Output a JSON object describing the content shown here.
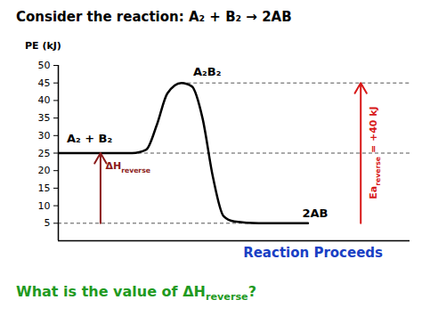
{
  "chart_data": {
    "type": "line",
    "title": "Consider the reaction: A₂ + B₂ → 2AB",
    "ylabel": "PE (kJ)",
    "xlabel": "Reaction Proceeds",
    "x": [
      0,
      21,
      25,
      28,
      31,
      35,
      38,
      41,
      44,
      47,
      50,
      57,
      71
    ],
    "values": [
      25,
      25,
      26,
      33,
      42,
      45,
      44,
      35,
      18,
      7,
      5.5,
      5,
      5
    ],
    "color": "#000000",
    "xlim": [
      0,
      100
    ],
    "ylim": [
      0,
      50
    ],
    "yticks": [
      5,
      10,
      15,
      20,
      25,
      30,
      35,
      40,
      45,
      50
    ],
    "tick_labels": "y",
    "reference_lines": [
      {
        "y": 45,
        "x1": 35,
        "x2": 100
      },
      {
        "y": 25,
        "x1": 21,
        "x2": 100
      },
      {
        "y": 5,
        "x1": 0,
        "x2": 57
      }
    ],
    "arrows": [
      {
        "x": 12,
        "from": 5,
        "to": 25,
        "color": "#8b1a1a",
        "label": [
          "ΔH",
          "reverse"
        ]
      },
      {
        "x": 86,
        "from": 5,
        "to": 45,
        "color": "#d81818",
        "label": [
          "Ea",
          "reverse",
          " = +40 kJ"
        ]
      }
    ],
    "annotations": [
      {
        "text": [
          "A₂ + B₂"
        ],
        "x": 2.5,
        "y": 28
      },
      {
        "text": [
          "A₂B₂"
        ],
        "x": 38.5,
        "y": 47
      },
      {
        "text": [
          "2AB"
        ],
        "x": 69.5,
        "y": 6.5
      }
    ],
    "question": {
      "text": [
        "What is the value of ΔH",
        "reverse",
        "?"
      ],
      "color": "#1f9a1f"
    }
  }
}
